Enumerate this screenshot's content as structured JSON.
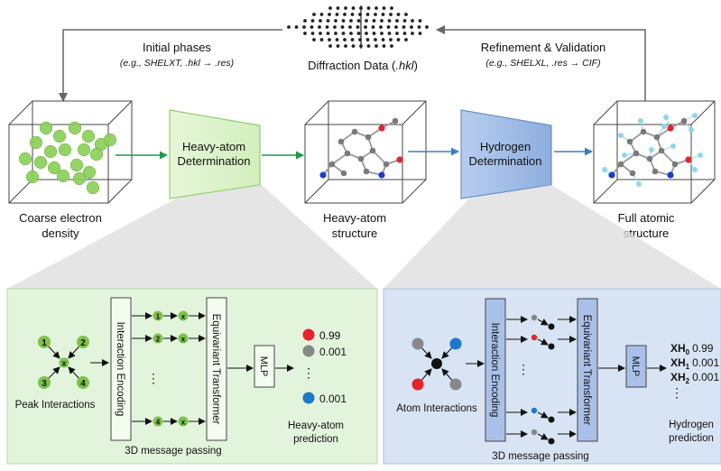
{
  "top": {
    "left_title": "Initial phases",
    "left_example": "(e.g., SHELXT, .hkl → .res)",
    "center_label_prefix": "Diffraction Data (",
    "center_label_ext": ".hkl",
    "center_label_suffix": ")",
    "right_title": "Refinement & Validation",
    "right_example": "(e.g., SHELXL, .res → CIF)"
  },
  "stages": {
    "coarse_line1": "Coarse electron",
    "coarse_line2": "density",
    "heavy_box_line1": "Heavy-atom",
    "heavy_box_line2": "Determination",
    "heavy_struct_line1": "Heavy-atom",
    "heavy_struct_line2": "structure",
    "hydrogen_box_line1": "Hydrogen",
    "hydrogen_box_line2": "Determination",
    "full_line1": "Full atomic",
    "full_line2": "structure"
  },
  "left_panel": {
    "peak_nodes": [
      "1",
      "2",
      "3",
      "4"
    ],
    "center_node": "x",
    "peak_interactions": "Peak Interactions",
    "interaction_encoding": "Interaction Encoding",
    "chain_top_left": "1",
    "chain_mid_left": "2",
    "chain_bottom_left": "4",
    "chain_x": "x",
    "ellipsis": "⋮",
    "equivariant_transformer": "Equivariant Transformer",
    "mlp": "MLP",
    "values": [
      "0.99",
      "0.001",
      "0.001"
    ],
    "output_ellipsis": "⋮",
    "prediction_line1": "Heavy-atom",
    "prediction_line2": "prediction",
    "footer": "3D message passing",
    "colors": {
      "panel": "#e3f4dd",
      "node": "#7cc24a",
      "red": "#e8212a",
      "gray": "#888888",
      "blue": "#1e78c8"
    }
  },
  "right_panel": {
    "atom_interactions": "Atom Interactions",
    "interaction_encoding": "Interaction Encoding",
    "ellipsis": "⋮",
    "equivariant_transformer": "Equivariant Transformer",
    "mlp": "MLP",
    "outputs": [
      {
        "label": "XH",
        "sub": "0",
        "value": "0.99"
      },
      {
        "label": "XH",
        "sub": "1",
        "value": "0.001"
      },
      {
        "label": "XH",
        "sub": "2",
        "value": "0.001"
      }
    ],
    "output_ellipsis": "⋮",
    "prediction_line1": "Hydrogen",
    "prediction_line2": "prediction",
    "footer": "3D message passing",
    "colors": {
      "panel": "#d8e4f3",
      "box": "#a9c1e8"
    }
  }
}
